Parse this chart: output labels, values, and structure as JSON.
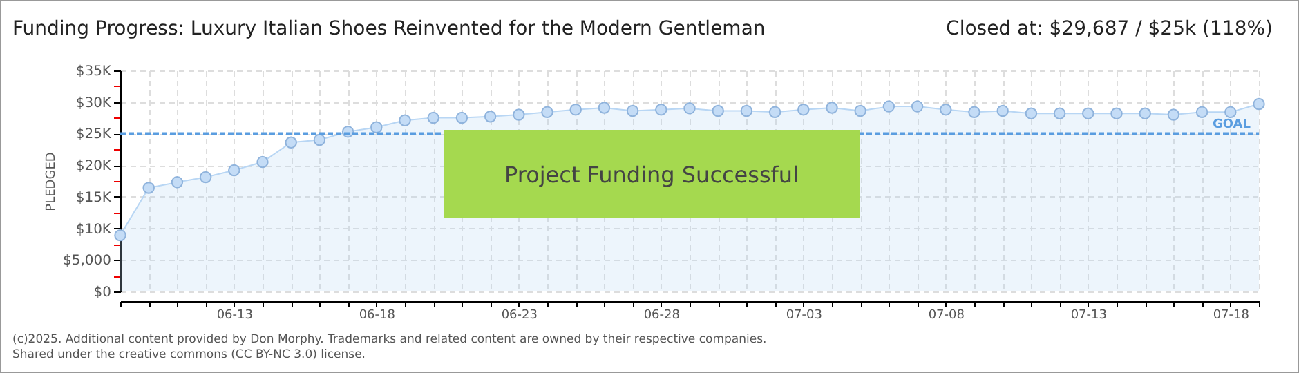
{
  "chart_data": {
    "type": "area",
    "title": "Funding Progress: Luxury Italian Shoes Reinvented for the Modern Gentleman",
    "subtitle": "Closed at: $29,687 / $25k (118%)",
    "ylabel": "PLEDGED",
    "x": [
      "--06-09",
      "--06-10",
      "--06-11",
      "--06-12",
      "--06-13",
      "--06-14",
      "--06-15",
      "--06-16",
      "--06-17",
      "--06-18",
      "--06-19",
      "--06-20",
      "--06-21",
      "--06-22",
      "--06-23",
      "--06-24",
      "--06-25",
      "--06-26",
      "--06-27",
      "--06-28",
      "--06-29",
      "--06-30",
      "--07-01",
      "--07-02",
      "--07-03",
      "--07-04",
      "--07-05",
      "--07-06",
      "--07-07",
      "--07-08",
      "--07-09",
      "--07-10",
      "--07-11",
      "--07-12",
      "--07-13",
      "--07-14",
      "--07-15",
      "--07-16",
      "--07-17",
      "--07-18",
      "--07-19"
    ],
    "series": [
      {
        "color": "#b8d6f4",
        "values": [
          8900,
          16400,
          17300,
          18100,
          19200,
          20500,
          23600,
          24000,
          25300,
          26000,
          27100,
          27500,
          27500,
          27700,
          28000,
          28400,
          28800,
          29100,
          28600,
          28800,
          29000,
          28600,
          28600,
          28400,
          28800,
          29100,
          28600,
          29300,
          29300,
          28800,
          28400,
          28600,
          28200,
          28200,
          28200,
          28200,
          28200,
          28000,
          28400,
          28400,
          29687
        ]
      }
    ],
    "marker": "circle",
    "grid": true,
    "xlim": [
      "--06-09",
      "--07-19"
    ],
    "xticks": [
      {
        "value": "--06-09",
        "label": null
      },
      {
        "value": "--06-10",
        "label": null
      },
      {
        "value": "--06-11",
        "label": null
      },
      {
        "value": "--06-12",
        "label": null
      },
      {
        "value": "--06-13",
        "label": "06-13"
      },
      {
        "value": "--06-14",
        "label": null
      },
      {
        "value": "--06-15",
        "label": null
      },
      {
        "value": "--06-16",
        "label": null
      },
      {
        "value": "--06-17",
        "label": null
      },
      {
        "value": "--06-18",
        "label": "06-18"
      },
      {
        "value": "--06-19",
        "label": null
      },
      {
        "value": "--06-20",
        "label": null
      },
      {
        "value": "--06-21",
        "label": null
      },
      {
        "value": "--06-22",
        "label": null
      },
      {
        "value": "--06-23",
        "label": "06-23"
      },
      {
        "value": "--06-24",
        "label": null
      },
      {
        "value": "--06-25",
        "label": null
      },
      {
        "value": "--06-26",
        "label": null
      },
      {
        "value": "--06-27",
        "label": null
      },
      {
        "value": "--06-28",
        "label": "06-28"
      },
      {
        "value": "--06-29",
        "label": null
      },
      {
        "value": "--06-30",
        "label": null
      },
      {
        "value": "--07-01",
        "label": null
      },
      {
        "value": "--07-02",
        "label": null
      },
      {
        "value": "--07-03",
        "label": "07-03"
      },
      {
        "value": "--07-04",
        "label": null
      },
      {
        "value": "--07-05",
        "label": null
      },
      {
        "value": "--07-06",
        "label": null
      },
      {
        "value": "--07-07",
        "label": null
      },
      {
        "value": "--07-08",
        "label": "07-08"
      },
      {
        "value": "--07-09",
        "label": null
      },
      {
        "value": "--07-10",
        "label": null
      },
      {
        "value": "--07-11",
        "label": null
      },
      {
        "value": "--07-12",
        "label": null
      },
      {
        "value": "--07-13",
        "label": "07-13"
      },
      {
        "value": "--07-14",
        "label": null
      },
      {
        "value": "--07-15",
        "label": null
      },
      {
        "value": "--07-16",
        "label": null
      },
      {
        "value": "--07-17",
        "label": null
      },
      {
        "value": "--07-18",
        "label": "07-18"
      },
      {
        "value": "--07-19",
        "label": null
      }
    ],
    "ylim": [
      0,
      35000
    ],
    "yticks": [
      {
        "value": 0,
        "label": "$0"
      },
      {
        "value": 2500,
        "label": null
      },
      {
        "value": 5000,
        "label": "$5,000"
      },
      {
        "value": 7500,
        "label": null
      },
      {
        "value": 10000,
        "label": "$10K"
      },
      {
        "value": 12500,
        "label": null
      },
      {
        "value": 15000,
        "label": "$15K"
      },
      {
        "value": 17500,
        "label": null
      },
      {
        "value": 20000,
        "label": "$20K"
      },
      {
        "value": 22500,
        "label": null
      },
      {
        "value": 25000,
        "label": "$25K"
      },
      {
        "value": 27500,
        "label": null
      },
      {
        "value": 30000,
        "label": "$30K"
      },
      {
        "value": 32500,
        "label": null
      },
      {
        "value": 35000,
        "label": "$35K"
      }
    ],
    "ref_lines": [
      {
        "axis": "y",
        "value": 25000,
        "label": "GOAL",
        "color": "#5a9de0",
        "line_style": "dashed"
      }
    ],
    "annotations": [
      "Project Funding Successful",
      "(c)2025. Additional content provided by Don Morphy. Trademarks and related content are owned by their respective companies.",
      "Shared under the creative commons (CC BY-NC 3.0) license."
    ]
  }
}
